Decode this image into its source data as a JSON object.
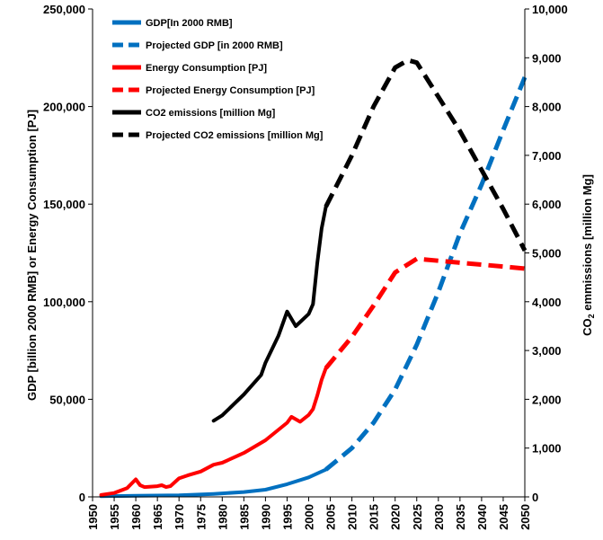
{
  "chart_data": {
    "type": "line",
    "xlabel": "",
    "ylabel_left": "GDP [billion 2000 RMB] or Energy Consumption [PJ]",
    "ylabel_right_parts": [
      "CO",
      "2",
      " emmissions [million Mg]"
    ],
    "xlim": [
      1950,
      2050
    ],
    "ylim_left": [
      0,
      250000
    ],
    "ylim_right": [
      0,
      10000
    ],
    "x_ticks": [
      1950,
      1955,
      1960,
      1965,
      1970,
      1975,
      1980,
      1985,
      1990,
      1995,
      2000,
      2005,
      2010,
      2015,
      2020,
      2025,
      2030,
      2035,
      2040,
      2045,
      2050
    ],
    "left_ticks": [
      0,
      50000,
      100000,
      150000,
      200000,
      250000
    ],
    "left_tick_labels": [
      "0",
      "50,000",
      "100,000",
      "150,000",
      "200,000",
      "250,000"
    ],
    "right_ticks": [
      0,
      1000,
      2000,
      3000,
      4000,
      5000,
      6000,
      7000,
      8000,
      9000,
      10000
    ],
    "right_tick_labels": [
      "0",
      "1,000",
      "2,000",
      "3,000",
      "4,000",
      "5,000",
      "6,000",
      "7,000",
      "8,000",
      "9,000",
      "10,000"
    ],
    "grid": false,
    "legend_placement": "top-left",
    "series": [
      {
        "name": "GDP[In 2000 RMB]",
        "axis": "left",
        "color": "#0070C0",
        "dash": false,
        "x": [
          1952,
          1960,
          1970,
          1978,
          1985,
          1990,
          1995,
          2000,
          2004
        ],
        "y": [
          300,
          600,
          800,
          1500,
          2500,
          3700,
          6500,
          10000,
          14000
        ]
      },
      {
        "name": "Projected GDP [in 2000 RMB]",
        "axis": "left",
        "color": "#0070C0",
        "dash": true,
        "x": [
          2004,
          2010,
          2015,
          2020,
          2025,
          2030,
          2035,
          2040,
          2045,
          2050
        ],
        "y": [
          14000,
          25000,
          38000,
          55000,
          78000,
          105000,
          135000,
          160000,
          188000,
          215000
        ]
      },
      {
        "name": "Energy Consumption [PJ]",
        "axis": "left",
        "color": "#FF0000",
        "dash": false,
        "x": [
          1952,
          1955,
          1958,
          1960,
          1961,
          1962,
          1965,
          1966,
          1967,
          1968,
          1970,
          1972,
          1975,
          1978,
          1980,
          1985,
          1990,
          1995,
          1996,
          1998,
          2000,
          2001,
          2002,
          2003,
          2004
        ],
        "y": [
          1000,
          2000,
          4500,
          9000,
          6000,
          5000,
          5500,
          6000,
          5000,
          5500,
          9500,
          11000,
          13000,
          16500,
          17500,
          22500,
          29000,
          38000,
          41000,
          38500,
          42000,
          45000,
          52000,
          60000,
          66000
        ]
      },
      {
        "name": "Projected Energy Consumption [PJ]",
        "axis": "left",
        "color": "#FF0000",
        "dash": true,
        "x": [
          2004,
          2010,
          2015,
          2020,
          2025,
          2030,
          2035,
          2040,
          2045,
          2050
        ],
        "y": [
          66000,
          82000,
          98000,
          115000,
          122000,
          121000,
          120000,
          119000,
          118000,
          117000
        ]
      },
      {
        "name": "CO2 emissions [million Mg]",
        "axis": "right",
        "color": "#000000",
        "dash": false,
        "x": [
          1978,
          1980,
          1985,
          1989,
          1990,
          1993,
          1995,
          1997,
          2000,
          2001,
          2002,
          2003,
          2004
        ],
        "y": [
          1560,
          1670,
          2100,
          2500,
          2750,
          3300,
          3800,
          3500,
          3750,
          3950,
          4800,
          5500,
          5950
        ]
      },
      {
        "name": "Projected CO2 emissions [million Mg]",
        "axis": "right",
        "color": "#000000",
        "dash": true,
        "x": [
          2004,
          2010,
          2015,
          2020,
          2023,
          2025,
          2030,
          2035,
          2040,
          2045,
          2050
        ],
        "y": [
          5950,
          7000,
          8000,
          8800,
          8950,
          8900,
          8200,
          7500,
          6700,
          5900,
          5050
        ]
      }
    ]
  }
}
